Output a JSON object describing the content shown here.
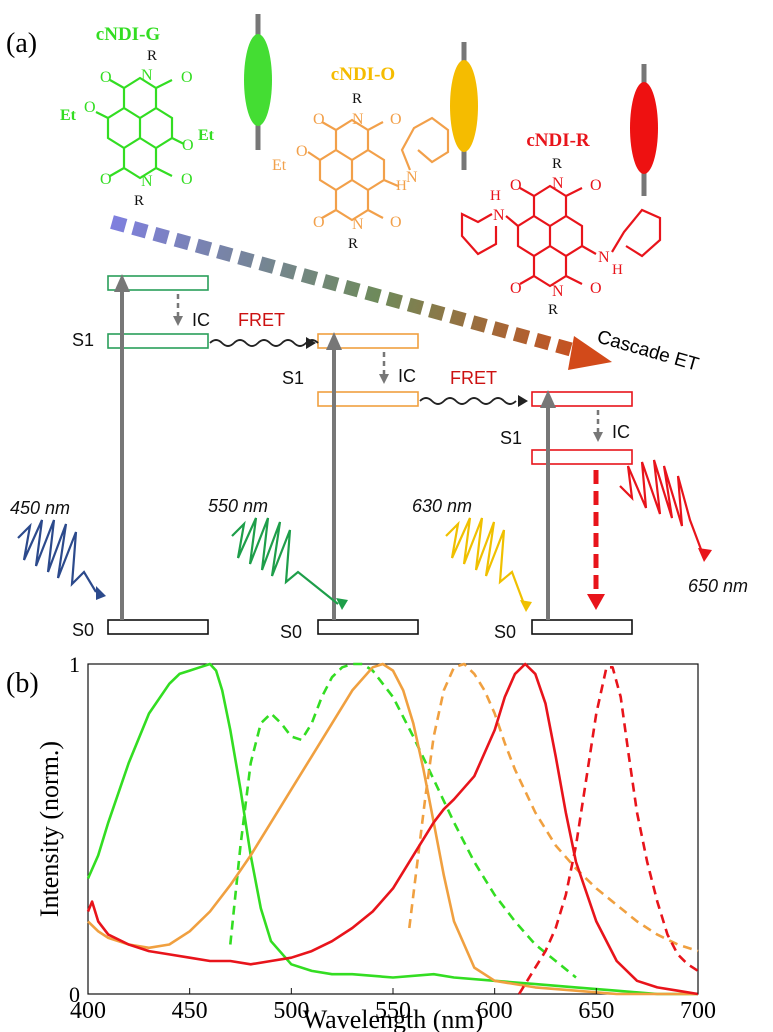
{
  "panel_a": {
    "label": "(a)",
    "molecules": [
      {
        "name": "cNDI-G",
        "color": "#33dd22",
        "substituents": [
          "R",
          "R",
          "O",
          "O",
          "O",
          "O",
          "N",
          "N",
          "Et",
          "O",
          "Et",
          "O"
        ]
      },
      {
        "name": "cNDI-O",
        "color": "#f2a04a",
        "substituents": [
          "R",
          "R",
          "O",
          "O",
          "O",
          "O",
          "N",
          "N",
          "Et",
          "O",
          "H",
          "N"
        ]
      },
      {
        "name": "cNDI-R",
        "color": "#e8141b",
        "substituents": [
          "R",
          "R",
          "O",
          "O",
          "O",
          "O",
          "N",
          "N",
          "H",
          "N",
          "N",
          "H"
        ]
      }
    ],
    "ellipse_colors": [
      "#44dd33",
      "#f5bc00",
      "#ee1111"
    ],
    "cascade_label": "Cascade ET",
    "levels": {
      "s1": "S1",
      "s0": "S0",
      "ic": "IC",
      "fret": "FRET"
    },
    "fret_color": "#cc1111",
    "excitations": [
      {
        "wavelength": "450 nm",
        "color": "#2c4a8c"
      },
      {
        "wavelength": "550 nm",
        "color": "#1e9e4a"
      },
      {
        "wavelength": "630 nm",
        "color": "#f0c000"
      }
    ],
    "emission": {
      "wavelength": "650 nm",
      "color": "#e8141b"
    }
  },
  "panel_b": {
    "label": "(b)"
  },
  "chart_data": {
    "type": "line",
    "xlabel": "Wavelength (nm)",
    "ylabel": "Intensity (norm.)",
    "xlim": [
      400,
      700
    ],
    "ylim": [
      0,
      1
    ],
    "x_ticks": [
      "400",
      "450",
      "500",
      "550",
      "600",
      "650",
      "700"
    ],
    "y_ticks": [
      "0",
      "1"
    ],
    "grid": false,
    "series": [
      {
        "color": "#33dd22",
        "style": "solid",
        "x": [
          400,
          405,
          410,
          420,
          430,
          440,
          445,
          450,
          455,
          460,
          463,
          466,
          470,
          475,
          480,
          485,
          490,
          500,
          510,
          520,
          530,
          550,
          570,
          580,
          600,
          620,
          640,
          660,
          680,
          700
        ],
        "y": [
          0.35,
          0.42,
          0.52,
          0.7,
          0.85,
          0.94,
          0.97,
          0.98,
          0.99,
          1.0,
          0.98,
          0.92,
          0.8,
          0.62,
          0.42,
          0.26,
          0.16,
          0.09,
          0.07,
          0.06,
          0.06,
          0.05,
          0.06,
          0.05,
          0.04,
          0.03,
          0.02,
          0.01,
          0.0,
          0.0
        ]
      },
      {
        "color": "#33dd22",
        "style": "dashed",
        "x": [
          470,
          475,
          480,
          485,
          490,
          495,
          500,
          505,
          510,
          515,
          520,
          525,
          530,
          535,
          540,
          550,
          560,
          570,
          580,
          590,
          600,
          610,
          620,
          630,
          640
        ],
        "y": [
          0.15,
          0.45,
          0.7,
          0.82,
          0.85,
          0.82,
          0.78,
          0.77,
          0.82,
          0.9,
          0.96,
          0.99,
          1.0,
          1.0,
          0.98,
          0.9,
          0.78,
          0.65,
          0.52,
          0.4,
          0.3,
          0.22,
          0.15,
          0.1,
          0.05
        ]
      },
      {
        "color": "#f0a040",
        "style": "solid",
        "x": [
          400,
          405,
          410,
          420,
          430,
          440,
          450,
          460,
          470,
          480,
          490,
          500,
          510,
          520,
          530,
          540,
          545,
          550,
          555,
          560,
          565,
          570,
          575,
          580,
          590,
          600,
          620,
          640,
          660,
          700
        ],
        "y": [
          0.22,
          0.19,
          0.17,
          0.15,
          0.14,
          0.15,
          0.19,
          0.25,
          0.33,
          0.42,
          0.52,
          0.62,
          0.72,
          0.82,
          0.92,
          0.99,
          1.0,
          0.98,
          0.92,
          0.82,
          0.68,
          0.52,
          0.36,
          0.22,
          0.08,
          0.04,
          0.02,
          0.01,
          0.0,
          0.0
        ]
      },
      {
        "color": "#f0a040",
        "style": "dashed",
        "x": [
          558,
          562,
          566,
          570,
          575,
          580,
          585,
          590,
          595,
          600,
          605,
          610,
          620,
          630,
          640,
          650,
          660,
          670,
          680,
          690,
          700
        ],
        "y": [
          0.2,
          0.4,
          0.6,
          0.78,
          0.92,
          0.99,
          1.0,
          0.97,
          0.92,
          0.85,
          0.76,
          0.68,
          0.55,
          0.45,
          0.38,
          0.32,
          0.27,
          0.22,
          0.18,
          0.15,
          0.13
        ]
      },
      {
        "color": "#e8141b",
        "style": "solid",
        "x": [
          400,
          402,
          405,
          410,
          420,
          430,
          440,
          450,
          460,
          470,
          480,
          490,
          500,
          510,
          520,
          530,
          540,
          550,
          560,
          570,
          575,
          580,
          590,
          600,
          605,
          610,
          615,
          620,
          625,
          630,
          635,
          640,
          650,
          660,
          670,
          680,
          690,
          700
        ],
        "y": [
          0.25,
          0.28,
          0.22,
          0.18,
          0.15,
          0.13,
          0.12,
          0.11,
          0.1,
          0.1,
          0.09,
          0.1,
          0.11,
          0.13,
          0.16,
          0.2,
          0.25,
          0.32,
          0.42,
          0.52,
          0.56,
          0.59,
          0.66,
          0.8,
          0.9,
          0.97,
          1.0,
          0.97,
          0.88,
          0.72,
          0.55,
          0.4,
          0.22,
          0.1,
          0.04,
          0.02,
          0.01,
          0.0
        ]
      },
      {
        "color": "#e8141b",
        "style": "dashed",
        "x": [
          612,
          616,
          620,
          625,
          630,
          635,
          640,
          645,
          650,
          655,
          658,
          662,
          666,
          670,
          675,
          680,
          685,
          690,
          695,
          700
        ],
        "y": [
          0.0,
          0.04,
          0.08,
          0.13,
          0.2,
          0.3,
          0.45,
          0.65,
          0.85,
          0.99,
          0.99,
          0.9,
          0.72,
          0.55,
          0.4,
          0.28,
          0.18,
          0.12,
          0.09,
          0.07
        ]
      }
    ]
  }
}
